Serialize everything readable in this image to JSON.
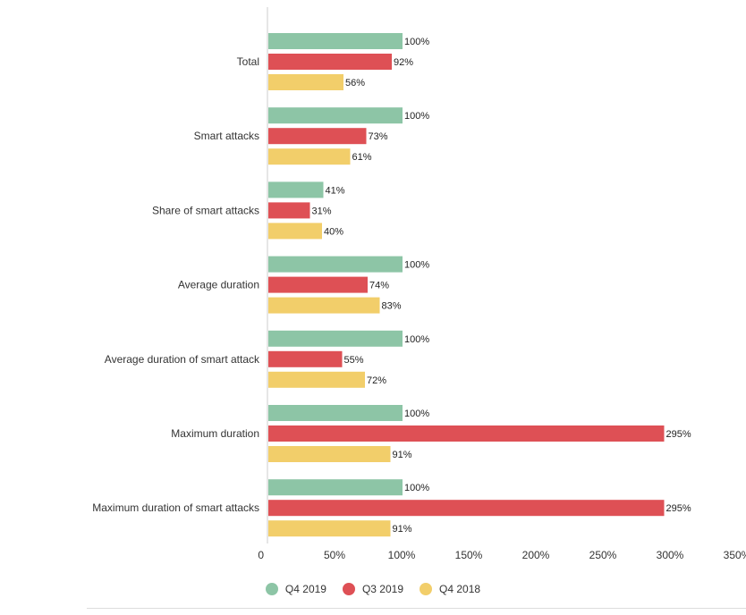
{
  "chart_data": {
    "type": "bar",
    "orientation": "horizontal",
    "categories": [
      "Total",
      "Smart attacks",
      "Share of smart attacks",
      "Average duration",
      "Average duration of smart attack",
      "Maximum duration",
      "Maximum duration of smart attacks"
    ],
    "series": [
      {
        "name": "Q4 2019",
        "color": "#8dc5a6",
        "values": [
          100,
          100,
          41,
          100,
          100,
          100,
          100
        ],
        "labels": [
          "100%",
          "100%",
          "41%",
          "100%",
          "100%",
          "100%",
          "100%"
        ]
      },
      {
        "name": "Q3 2019",
        "color": "#de5055",
        "values": [
          92,
          73,
          31,
          74,
          55,
          295,
          295
        ],
        "labels": [
          "92%",
          "73%",
          "31%",
          "74%",
          "55%",
          "295%",
          "295%"
        ]
      },
      {
        "name": "Q4 2018",
        "color": "#f2ce6a",
        "values": [
          56,
          61,
          40,
          83,
          72,
          91,
          91
        ],
        "labels": [
          "56%",
          "61%",
          "40%",
          "83%",
          "72%",
          "91%",
          "91%"
        ]
      }
    ],
    "xlim": [
      0,
      350
    ],
    "xticks": [
      0,
      50,
      100,
      150,
      200,
      250,
      300,
      350
    ],
    "xtick_labels": [
      "0",
      "50%",
      "100%",
      "150%",
      "200%",
      "250%",
      "300%",
      "350%"
    ],
    "grid": false,
    "legend_position": "bottom-center",
    "title": "",
    "xlabel": "",
    "ylabel": ""
  }
}
